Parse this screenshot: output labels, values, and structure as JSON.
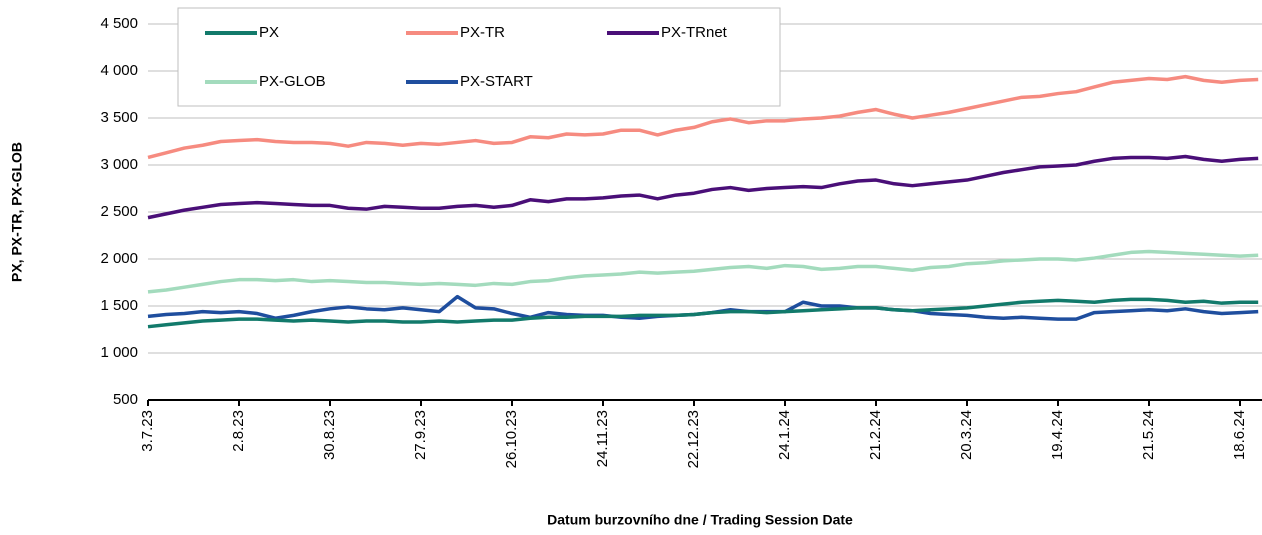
{
  "chart_data": {
    "type": "line",
    "y_label": "PX, PX-TR, PX-GLOB",
    "x_label": "Datum burzovního dne / Trading Session Date",
    "categories": [
      "3.7.23",
      null,
      null,
      null,
      null,
      "2.8.23",
      null,
      null,
      null,
      null,
      "30.8.23",
      null,
      null,
      null,
      null,
      "27.9.23",
      null,
      null,
      null,
      null,
      "26.10.23",
      null,
      null,
      null,
      null,
      "24.11.23",
      null,
      null,
      null,
      null,
      "22.12.23",
      null,
      null,
      null,
      null,
      "24.1.24",
      null,
      null,
      null,
      null,
      "21.2.24",
      null,
      null,
      null,
      null,
      "20.3.24",
      null,
      null,
      null,
      null,
      "19.4.24",
      null,
      null,
      null,
      null,
      "21.5.24",
      null,
      null,
      null,
      null,
      "18.6.24",
      null
    ],
    "series": [
      {
        "name": "PX",
        "color": "#127a6b",
        "values": [
          1280,
          1300,
          1320,
          1340,
          1350,
          1360,
          1360,
          1350,
          1340,
          1350,
          1340,
          1330,
          1340,
          1340,
          1330,
          1330,
          1340,
          1330,
          1340,
          1350,
          1350,
          1370,
          1380,
          1380,
          1390,
          1390,
          1390,
          1400,
          1400,
          1400,
          1410,
          1430,
          1440,
          1440,
          1430,
          1440,
          1450,
          1460,
          1470,
          1480,
          1480,
          1460,
          1450,
          1460,
          1470,
          1480,
          1500,
          1520,
          1540,
          1550,
          1560,
          1550,
          1540,
          1560,
          1570,
          1570,
          1560,
          1540,
          1550,
          1530,
          1540,
          1540
        ]
      },
      {
        "name": "PX-TR",
        "color": "#f68b80",
        "values": [
          3080,
          3130,
          3180,
          3210,
          3250,
          3260,
          3270,
          3250,
          3240,
          3240,
          3230,
          3200,
          3240,
          3230,
          3210,
          3230,
          3220,
          3240,
          3260,
          3230,
          3240,
          3300,
          3290,
          3330,
          3320,
          3330,
          3370,
          3370,
          3320,
          3370,
          3400,
          3460,
          3490,
          3450,
          3470,
          3470,
          3490,
          3500,
          3520,
          3560,
          3590,
          3540,
          3500,
          3530,
          3560,
          3600,
          3640,
          3680,
          3720,
          3730,
          3760,
          3780,
          3830,
          3880,
          3900,
          3920,
          3910,
          3940,
          3900,
          3880,
          3900,
          3910
        ]
      },
      {
        "name": "PX-TRnet",
        "color": "#4a0f78",
        "values": [
          2440,
          2480,
          2520,
          2550,
          2580,
          2590,
          2600,
          2590,
          2580,
          2570,
          2570,
          2540,
          2530,
          2560,
          2550,
          2540,
          2540,
          2560,
          2570,
          2550,
          2570,
          2630,
          2610,
          2640,
          2640,
          2650,
          2670,
          2680,
          2640,
          2680,
          2700,
          2740,
          2760,
          2730,
          2750,
          2760,
          2770,
          2760,
          2800,
          2830,
          2840,
          2800,
          2780,
          2800,
          2820,
          2840,
          2880,
          2920,
          2950,
          2980,
          2990,
          3000,
          3040,
          3070,
          3080,
          3080,
          3070,
          3090,
          3060,
          3040,
          3060,
          3070
        ]
      },
      {
        "name": "PX-GLOB",
        "color": "#a3dbbd",
        "values": [
          1650,
          1670,
          1700,
          1730,
          1760,
          1780,
          1780,
          1770,
          1780,
          1760,
          1770,
          1760,
          1750,
          1750,
          1740,
          1730,
          1740,
          1730,
          1720,
          1740,
          1730,
          1760,
          1770,
          1800,
          1820,
          1830,
          1840,
          1860,
          1850,
          1860,
          1870,
          1890,
          1910,
          1920,
          1900,
          1930,
          1920,
          1890,
          1900,
          1920,
          1920,
          1900,
          1880,
          1910,
          1920,
          1950,
          1960,
          1980,
          1990,
          2000,
          2000,
          1990,
          2010,
          2040,
          2070,
          2080,
          2070,
          2060,
          2050,
          2040,
          2030,
          2040
        ]
      },
      {
        "name": "PX-START",
        "color": "#1f4e9e",
        "values": [
          1390,
          1410,
          1420,
          1440,
          1430,
          1440,
          1420,
          1370,
          1400,
          1440,
          1470,
          1490,
          1470,
          1460,
          1480,
          1460,
          1440,
          1600,
          1480,
          1470,
          1420,
          1380,
          1430,
          1410,
          1400,
          1400,
          1380,
          1370,
          1390,
          1400,
          1410,
          1430,
          1460,
          1440,
          1440,
          1440,
          1540,
          1500,
          1500,
          1480,
          1480,
          1460,
          1450,
          1420,
          1410,
          1400,
          1380,
          1370,
          1380,
          1370,
          1360,
          1360,
          1430,
          1440,
          1450,
          1460,
          1450,
          1470,
          1440,
          1420,
          1430,
          1440
        ]
      }
    ],
    "ylim": [
      500,
      4500
    ],
    "yticks": [
      500,
      {
        "value": 1000,
        "label": "1 000"
      },
      {
        "value": 1500,
        "label": "1 500"
      },
      {
        "value": 2000,
        "label": "2 000"
      },
      {
        "value": 2500,
        "label": "2 500"
      },
      {
        "value": 3000,
        "label": "3 000"
      },
      {
        "value": 3500,
        "label": "3 500"
      },
      {
        "value": 4000,
        "label": "4 000"
      },
      {
        "value": 4500,
        "label": "4 500"
      }
    ],
    "grid": true,
    "legend": "top-left"
  }
}
